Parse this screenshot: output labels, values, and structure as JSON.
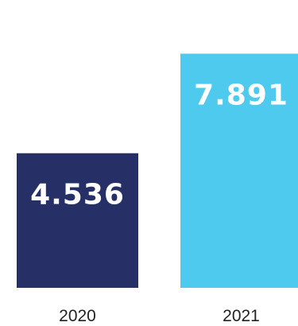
{
  "chart_data": {
    "type": "bar",
    "categories": [
      "2020",
      "2021"
    ],
    "values": [
      4536,
      7891
    ],
    "value_labels": [
      "4.536",
      "7.891"
    ],
    "colors": [
      "#262f66",
      "#4dcaed"
    ],
    "label_color": "#ffffff",
    "category_label_color": "#222222",
    "title": "",
    "xlabel": "",
    "ylabel": "",
    "ylim": [
      0,
      9700
    ],
    "grid": false,
    "legend": "none"
  }
}
